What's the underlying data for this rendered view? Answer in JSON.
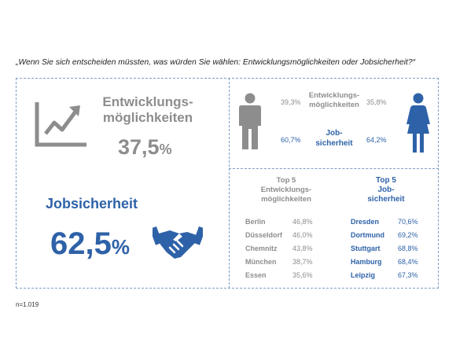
{
  "question": "„Wenn Sie sich entscheiden müssten, was würden Sie wählen: Entwicklungsmöglichkeiten oder Jobsicherheit?“",
  "footnote": "n=1.019",
  "colors": {
    "grey": "#8d8d8d",
    "blue": "#2e62a8",
    "border": "#7d9cc6"
  },
  "left": {
    "dev_label_1": "Entwicklungs-",
    "dev_label_2": "möglichkeiten",
    "dev_value": "37,5",
    "dev_unit": "%",
    "job_label": "Jobsicherheit",
    "job_value": "62,5",
    "job_unit": "%",
    "dev_icon": "growth-chart-icon",
    "job_icon": "handshake-icon"
  },
  "gender": {
    "dev_label_1": "Entwicklungs-",
    "dev_label_2": "möglichkeiten",
    "job_label_1": "Job-",
    "job_label_2": "sicherheit",
    "male_dev": "39,3%",
    "female_dev": "35,8%",
    "male_job": "60,7%",
    "female_job": "64,2%",
    "male_icon": "man-icon",
    "female_icon": "woman-icon"
  },
  "cities": {
    "dev_title_1": "Top 5",
    "dev_title_2": "Entwicklungs-",
    "dev_title_3": "möglichkeiten",
    "job_title_1": "Top 5",
    "job_title_2": "Job-",
    "job_title_3": "sicherheit",
    "dev": [
      {
        "city": "Berlin",
        "value": "46,8%"
      },
      {
        "city": "Düsseldorf",
        "value": "46,0%"
      },
      {
        "city": "Chemnitz",
        "value": "43,8%"
      },
      {
        "city": "München",
        "value": "38,7%"
      },
      {
        "city": "Essen",
        "value": "35,6%"
      }
    ],
    "job": [
      {
        "city": "Dresden",
        "value": "70,6%"
      },
      {
        "city": "Dortmund",
        "value": "69,2%"
      },
      {
        "city": "Stuttgart",
        "value": "68,8%"
      },
      {
        "city": "Hamburg",
        "value": "68,4%"
      },
      {
        "city": "Leipzig",
        "value": "67,3%"
      }
    ]
  },
  "chart_data": {
    "type": "table",
    "overall": [
      {
        "name": "Entwicklungsmöglichkeiten",
        "value": 37.5
      },
      {
        "name": "Jobsicherheit",
        "value": 62.5
      }
    ],
    "by_gender": {
      "male": {
        "Entwicklungsmöglichkeiten": 39.3,
        "Jobsicherheit": 60.7
      },
      "female": {
        "Entwicklungsmöglichkeiten": 35.8,
        "Jobsicherheit": 64.2
      }
    },
    "top5_entwicklungsmoeglichkeiten": [
      {
        "city": "Berlin",
        "value": 46.8
      },
      {
        "city": "Düsseldorf",
        "value": 46.0
      },
      {
        "city": "Chemnitz",
        "value": 43.8
      },
      {
        "city": "München",
        "value": 38.7
      },
      {
        "city": "Essen",
        "value": 35.6
      }
    ],
    "top5_jobsicherheit": [
      {
        "city": "Dresden",
        "value": 70.6
      },
      {
        "city": "Dortmund",
        "value": 69.2
      },
      {
        "city": "Stuttgart",
        "value": 68.8
      },
      {
        "city": "Hamburg",
        "value": 68.4
      },
      {
        "city": "Leipzig",
        "value": 67.3
      }
    ]
  }
}
